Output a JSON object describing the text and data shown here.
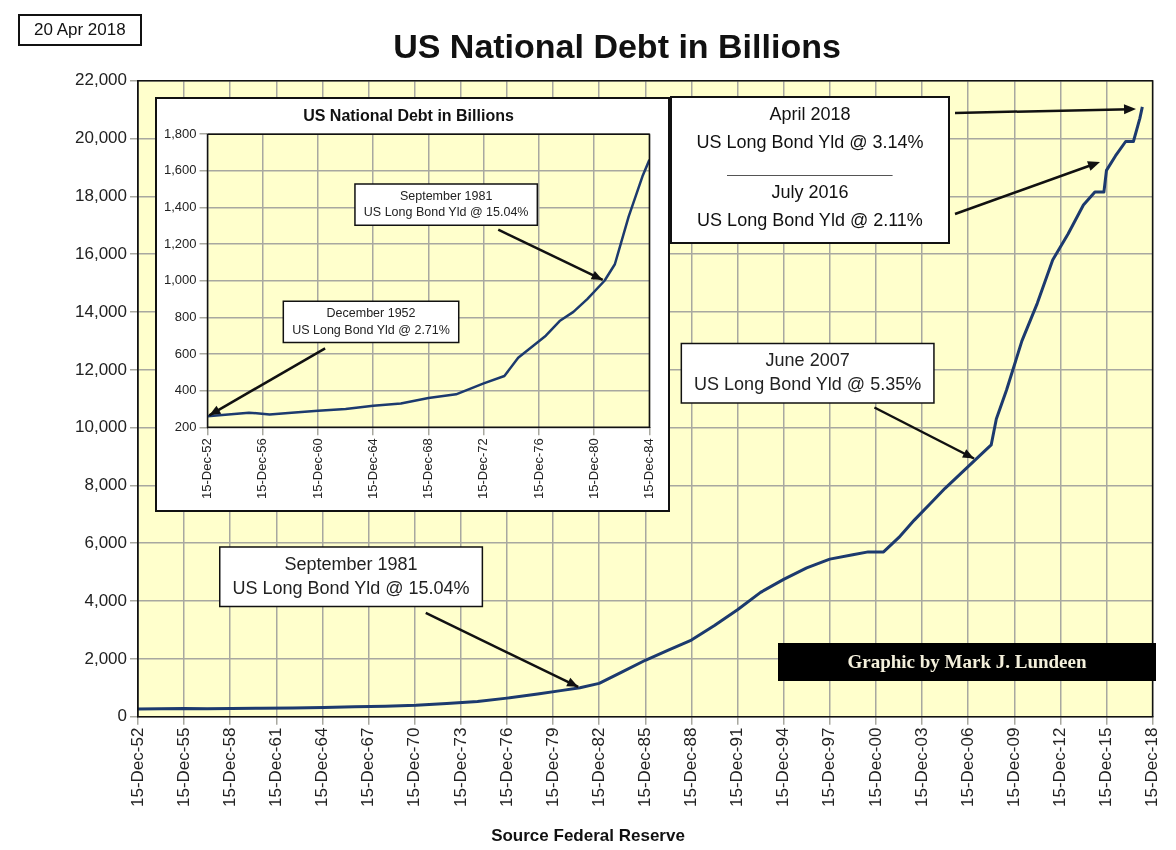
{
  "chart_data": [
    {
      "type": "line",
      "title": "US National Debt in Billions",
      "color": "#1c3a6e",
      "grid": true,
      "x": [
        "1952-12-15",
        "1954-06",
        "1955-12",
        "1957-06",
        "1959-01",
        "1960-12",
        "1963-01",
        "1965-01",
        "1967-01",
        "1969-01",
        "1971-01",
        "1973-01",
        "1975-01",
        "1976-12",
        "1978-12",
        "1980-06",
        "1981-09",
        "1982-12",
        "1984-06",
        "1985-12",
        "1987-06",
        "1988-12",
        "1990-06",
        "1991-12",
        "1993-06",
        "1994-12",
        "1996-06",
        "1997-12",
        "1999-06",
        "2000-06",
        "2001-06",
        "2002-06",
        "2003-06",
        "2004-06",
        "2005-06",
        "2006-06",
        "2007-06",
        "2008-06",
        "2008-10",
        "2009-06",
        "2010-06",
        "2011-06",
        "2012-06",
        "2013-06",
        "2014-06",
        "2015-03",
        "2015-10",
        "2015-12",
        "2016-07",
        "2017-03",
        "2017-09",
        "2018-02",
        "2018-04"
      ],
      "values": [
        260,
        270,
        280,
        270,
        280,
        290,
        300,
        320,
        340,
        360,
        390,
        450,
        520,
        640,
        780,
        900,
        1000,
        1150,
        1550,
        1950,
        2300,
        2650,
        3150,
        3700,
        4300,
        4750,
        5150,
        5450,
        5600,
        5700,
        5700,
        6200,
        6800,
        7350,
        7900,
        8400,
        8900,
        9400,
        10300,
        11300,
        13000,
        14300,
        15800,
        16700,
        17700,
        18150,
        18150,
        18900,
        19400,
        19900,
        19900,
        20700,
        21100
      ],
      "xlim": [
        "1952-12-15",
        "2018-12-15"
      ],
      "xticks": [
        {
          "value": "1952-12-15",
          "label": "15-Dec-52"
        },
        {
          "value": "1955-12-15",
          "label": "15-Dec-55"
        },
        {
          "value": "1958-12-15",
          "label": "15-Dec-58"
        },
        {
          "value": "1961-12-15",
          "label": "15-Dec-61"
        },
        {
          "value": "1964-12-15",
          "label": "15-Dec-64"
        },
        {
          "value": "1967-12-15",
          "label": "15-Dec-67"
        },
        {
          "value": "1970-12-15",
          "label": "15-Dec-70"
        },
        {
          "value": "1973-12-15",
          "label": "15-Dec-73"
        },
        {
          "value": "1976-12-15",
          "label": "15-Dec-76"
        },
        {
          "value": "1979-12-15",
          "label": "15-Dec-79"
        },
        {
          "value": "1982-12-15",
          "label": "15-Dec-82"
        },
        {
          "value": "1985-12-15",
          "label": "15-Dec-85"
        },
        {
          "value": "1988-12-15",
          "label": "15-Dec-88"
        },
        {
          "value": "1991-12-15",
          "label": "15-Dec-91"
        },
        {
          "value": "1994-12-15",
          "label": "15-Dec-94"
        },
        {
          "value": "1997-12-15",
          "label": "15-Dec-97"
        },
        {
          "value": "2000-12-15",
          "label": "15-Dec-00"
        },
        {
          "value": "2003-12-15",
          "label": "15-Dec-03"
        },
        {
          "value": "2006-12-15",
          "label": "15-Dec-06"
        },
        {
          "value": "2009-12-15",
          "label": "15-Dec-09"
        },
        {
          "value": "2012-12-15",
          "label": "15-Dec-12"
        },
        {
          "value": "2015-12-15",
          "label": "15-Dec-15"
        },
        {
          "value": "2018-12-15",
          "label": "15-Dec-18"
        }
      ],
      "ylim": [
        0,
        22000
      ],
      "yticks": [
        0,
        {
          "value": 2000,
          "label": "2,000"
        },
        {
          "value": 4000,
          "label": "4,000"
        },
        {
          "value": 6000,
          "label": "6,000"
        },
        {
          "value": 8000,
          "label": "8,000"
        },
        {
          "value": 10000,
          "label": "10,000"
        },
        {
          "value": 12000,
          "label": "12,000"
        },
        {
          "value": 14000,
          "label": "14,000"
        },
        {
          "value": 16000,
          "label": "16,000"
        },
        {
          "value": 18000,
          "label": "18,000"
        },
        {
          "value": 20000,
          "label": "20,000"
        },
        {
          "value": 22000,
          "label": "22,000"
        }
      ],
      "annotations": [
        "20 Apr 2018",
        "Graphic by Mark J. Lundeen",
        "Source Federal Reserve",
        "April 2018\nUS Long Bond Yld @ 3.14%",
        "July 2016\nUS Long Bond Yld @ 2.11%",
        {
          "text": "September 1981\nUS Long Bond Yld @ 15.04%",
          "x": "1981-09",
          "y": 1000
        },
        {
          "text": "June 2007\nUS Long Bond Yld @ 5.35%",
          "x": "2007-06",
          "y": 8900
        }
      ]
    },
    {
      "type": "line",
      "title": "US National Debt in Billions",
      "color": "#1c3a6e",
      "grid": true,
      "x": [
        "1952-12-15",
        "1954-06",
        "1955-12",
        "1957-06",
        "1959-01",
        "1960-12",
        "1962-12",
        "1964-12",
        "1966-12",
        "1968-12",
        "1970-12",
        "1972-12",
        "1974-06",
        "1975-06",
        "1976-06",
        "1977-06",
        "1978-06",
        "1979-06",
        "1980-06",
        "1981-09",
        "1982-06",
        "1983-06",
        "1984-06",
        "1984-12"
      ],
      "values": [
        260,
        270,
        280,
        270,
        280,
        290,
        300,
        318,
        330,
        360,
        380,
        440,
        480,
        580,
        640,
        700,
        780,
        830,
        900,
        1000,
        1090,
        1350,
        1570,
        1660
      ],
      "xlim": [
        "1952-12-15",
        "1984-12-15"
      ],
      "xticks": [
        {
          "value": "1952-12-15",
          "label": "15-Dec-52"
        },
        {
          "value": "1956-12-15",
          "label": "15-Dec-56"
        },
        {
          "value": "1960-12-15",
          "label": "15-Dec-60"
        },
        {
          "value": "1964-12-15",
          "label": "15-Dec-64"
        },
        {
          "value": "1968-12-15",
          "label": "15-Dec-68"
        },
        {
          "value": "1972-12-15",
          "label": "15-Dec-72"
        },
        {
          "value": "1976-12-15",
          "label": "15-Dec-76"
        },
        {
          "value": "1980-12-15",
          "label": "15-Dec-80"
        },
        {
          "value": "1984-12-15",
          "label": "15-Dec-84"
        }
      ],
      "ylim": [
        200,
        1800
      ],
      "yticks": [
        200,
        400,
        600,
        800,
        {
          "value": 1000,
          "label": "1,000"
        },
        {
          "value": 1200,
          "label": "1,200"
        },
        {
          "value": 1400,
          "label": "1,400"
        },
        {
          "value": 1600,
          "label": "1,600"
        },
        {
          "value": 1800,
          "label": "1,800"
        }
      ],
      "annotations": [
        {
          "text": "December 1952\nUS Long Bond Yld @ 2.71%",
          "x": "1952-12-15",
          "y": 260
        },
        {
          "text": "September 1981\nUS Long Bond Yld @ 15.04%",
          "x": "1981-09",
          "y": 1000
        }
      ]
    }
  ]
}
